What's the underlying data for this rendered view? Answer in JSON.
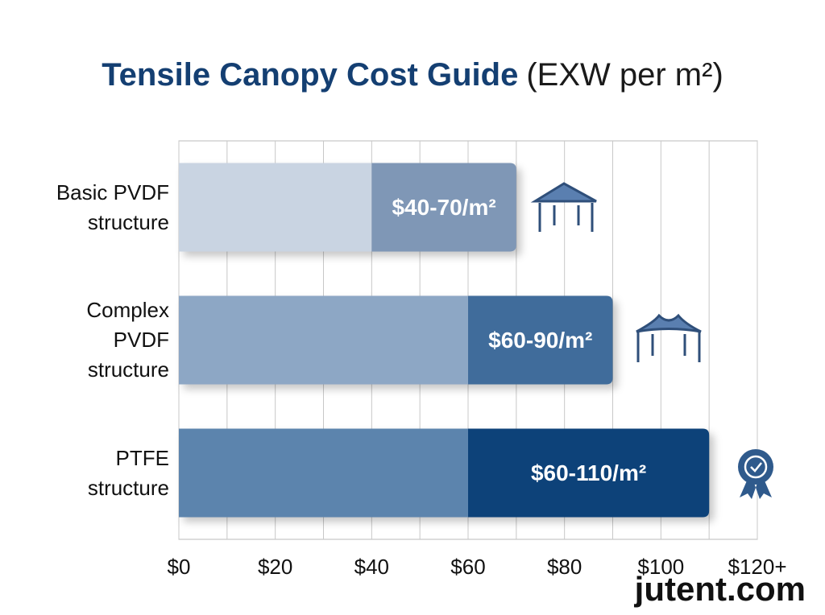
{
  "chart_data": {
    "type": "range_bar",
    "title": "Tensile Canopy Cost Guide",
    "subtitle": "(EXW per m²)",
    "categories": [
      "Basic PVDF structure",
      "Complex PVDF structure",
      "PTFE structure"
    ],
    "low": [
      40,
      60,
      60
    ],
    "high": [
      70,
      90,
      110
    ],
    "value_labels": [
      "$40-70/m²",
      "$60-90/m²",
      "$60-110/m²"
    ],
    "base_colors": [
      "#c9d4e2",
      "#8da7c5",
      "#5b84ad"
    ],
    "range_colors": [
      "#7f97b6",
      "#3f6c9b",
      "#0f4379"
    ],
    "xlim": [
      0,
      120
    ],
    "xticks": [
      {
        "value": 0,
        "label": "$0"
      },
      {
        "value": 20,
        "label": "$20"
      },
      {
        "value": 40,
        "label": "$40"
      },
      {
        "value": 60,
        "label": "$60"
      },
      {
        "value": 80,
        "label": "$80"
      },
      {
        "value": 100,
        "label": "$100"
      },
      {
        "value": 120,
        "label": "$120+"
      }
    ],
    "minor_xticks": [
      10,
      30,
      50,
      70,
      90,
      110
    ],
    "grid": true,
    "watermark": "jutent.com"
  }
}
